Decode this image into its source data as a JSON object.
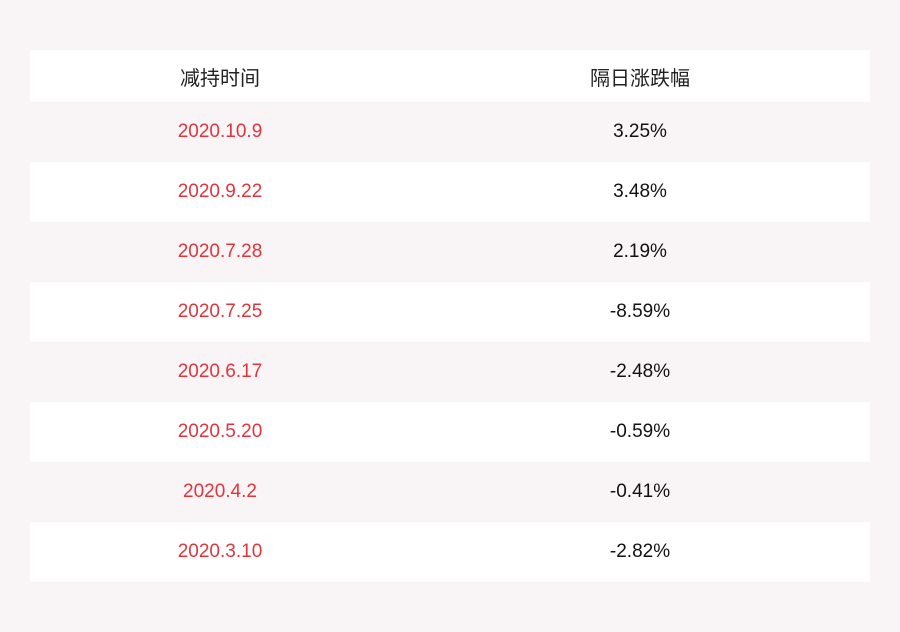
{
  "table": {
    "headers": [
      "减持时间",
      "隔日涨跌幅"
    ],
    "rows": [
      {
        "date": "2020.10.9",
        "change": "3.25%"
      },
      {
        "date": "2020.9.22",
        "change": "3.48%"
      },
      {
        "date": "2020.7.28",
        "change": "2.19%"
      },
      {
        "date": "2020.7.25",
        "change": "-8.59%"
      },
      {
        "date": "2020.6.17",
        "change": "-2.48%"
      },
      {
        "date": "2020.5.20",
        "change": "-0.59%"
      },
      {
        "date": "2020.4.2",
        "change": "-0.41%"
      },
      {
        "date": "2020.3.10",
        "change": "-2.82%"
      }
    ]
  },
  "colors": {
    "date_text": "#e0353c",
    "stripe": "#f9f5f6"
  }
}
